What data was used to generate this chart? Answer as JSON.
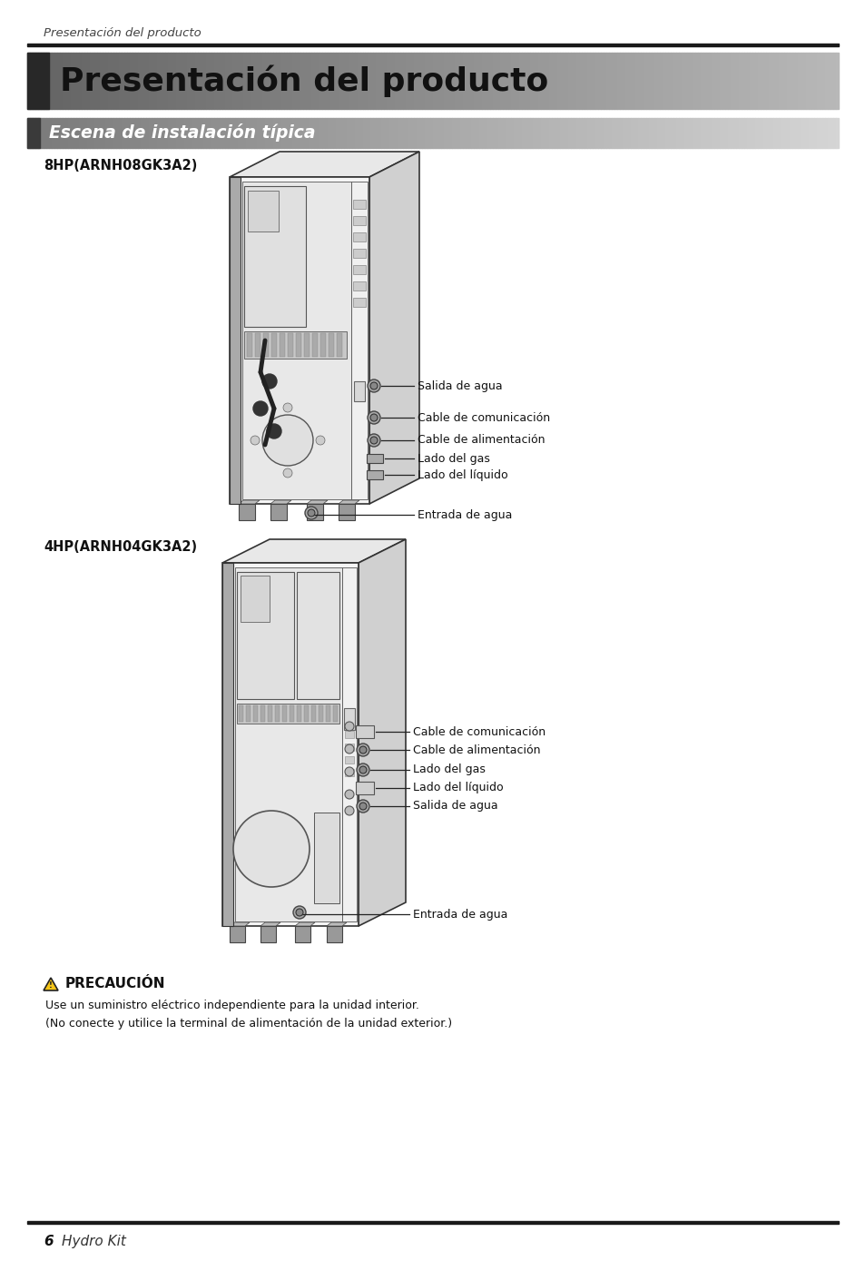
{
  "page_header": "Presentación del producto",
  "main_title": "Presentación del producto",
  "subtitle": "Escena de instalación típica",
  "section1_label": "8HP(ARNH08GK3A2)",
  "section2_label": "4HP(ARNH04GK3A2)",
  "labels_8hp": [
    "Salida de agua",
    "Cable de comunicación",
    "Cable de alimentación",
    "Lado del gas",
    "Lado del líquido",
    "Entrada de agua"
  ],
  "labels_4hp": [
    "Cable de comunicación",
    "Cable de alimentación",
    "Lado del gas",
    "Lado del líquido",
    "Salida de agua",
    "Entrada de agua"
  ],
  "precaution_title": "PRECAUCIÓN",
  "precaution_text1": "Use un suministro eléctrico independiente para la unidad interior.",
  "precaution_text2": "(No conecte y utilice la terminal de alimentación de la unidad exterior.)",
  "footer_num": "6",
  "footer_text": "Hydro Kit",
  "bg_color": "#ffffff"
}
